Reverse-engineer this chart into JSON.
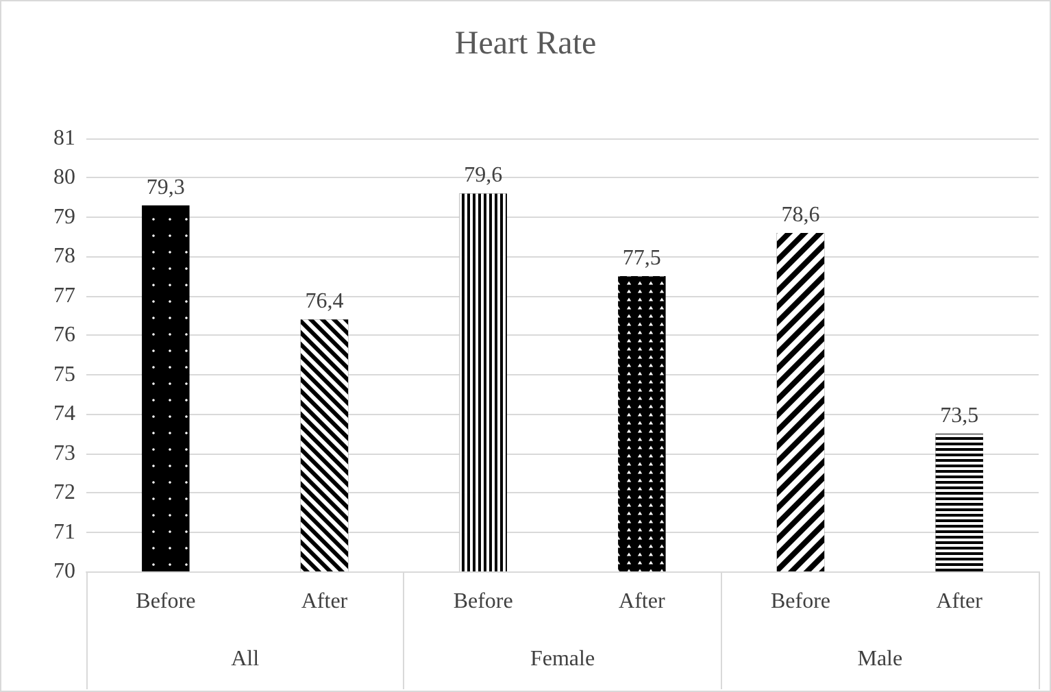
{
  "chart_data": {
    "type": "bar",
    "title": "Heart Rate",
    "categories": [
      "Before",
      "After",
      "Before",
      "After",
      "Before",
      "After"
    ],
    "values": [
      79.3,
      76.4,
      79.6,
      77.5,
      78.6,
      73.5
    ],
    "value_labels": [
      "79,3",
      "76,4",
      "79,6",
      "77,5",
      "78,6",
      "73,5"
    ],
    "color": "#000000",
    "annotations": [
      "All",
      "Female",
      "Male"
    ],
    "ylim": [
      70,
      81
    ],
    "yticks": [
      70,
      71,
      72,
      73,
      74,
      75,
      76,
      77,
      78,
      79,
      80,
      81
    ],
    "grid": "y"
  }
}
